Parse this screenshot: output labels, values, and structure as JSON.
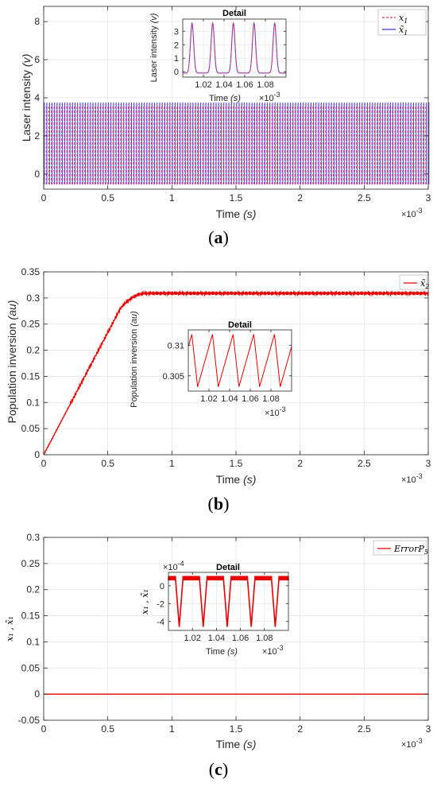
{
  "chart_data": [
    {
      "type": "line",
      "panel": "(a)",
      "caption_letter": "a",
      "xlabel": "Time",
      "xunit": "(s)",
      "ylabel": "Laser intensity",
      "yunit": "(v)",
      "x_multiplier": "×10",
      "x_multiplier_exp": "-3",
      "xlim": [
        0,
        3
      ],
      "ylim": [
        -0.8,
        8.8
      ],
      "xticks": [
        0,
        0.5,
        1,
        1.5,
        2,
        2.5,
        3
      ],
      "yticks": [
        0,
        2,
        4,
        6,
        8
      ],
      "grid": true,
      "legend_position": "top-right",
      "series": [
        {
          "name": "x",
          "name_sub": "1",
          "color": "#e8336b",
          "style": "dashed",
          "min": -0.55,
          "max": 3.65
        },
        {
          "name": "x̃",
          "name_sub": "1",
          "color": "#3a3ad6",
          "style": "solid",
          "min": -0.55,
          "max": 3.75
        }
      ],
      "inset": {
        "title": "Detail",
        "xlabel": "Time",
        "xunit": "(s)",
        "ylabel": "Laser intensity",
        "yunit": "(v)",
        "x_multiplier": "×10",
        "x_multiplier_exp": "-3",
        "xlim": [
          1.0,
          1.1
        ],
        "ylim": [
          -0.4,
          3.9
        ],
        "xticks": [
          "1.02",
          "1.04",
          "1.06",
          "1.08"
        ],
        "xtick_values": [
          1.02,
          1.04,
          1.06,
          1.08
        ],
        "yticks": [
          0,
          1,
          2,
          3
        ],
        "peaks_x": [
          1.009,
          1.029,
          1.049,
          1.069,
          1.089
        ],
        "peak_y": 3.6,
        "base_y": -0.1
      }
    },
    {
      "type": "line",
      "panel": "(b)",
      "caption_letter": "b",
      "xlabel": "Time",
      "xunit": "(s)",
      "ylabel": "Population inversion",
      "yunit": "(au)",
      "x_multiplier": "×10",
      "x_multiplier_exp": "-3",
      "xlim": [
        0,
        3
      ],
      "ylim": [
        0,
        0.35
      ],
      "xticks": [
        0,
        0.5,
        1,
        1.5,
        2,
        2.5,
        3
      ],
      "yticks": [
        "0",
        "0.05",
        "0.1",
        "0.15",
        "0.2",
        "0.25",
        "0.3",
        "0.35"
      ],
      "ytick_values": [
        0,
        0.05,
        0.1,
        0.15,
        0.2,
        0.25,
        0.3,
        0.35
      ],
      "grid": true,
      "legend_position": "top-right",
      "series": [
        {
          "name": "x̃",
          "name_sub": "2",
          "color": "#e60000",
          "style": "solid",
          "plateau": 0.309
        }
      ],
      "inset": {
        "title": "Detail",
        "xlabel": "Time",
        "xunit": "(s)",
        "ylabel": "Population inversion",
        "yunit": "(au)",
        "x_multiplier": "×10",
        "x_multiplier_exp": "-3",
        "xlim": [
          1.0,
          1.1
        ],
        "ylim": [
          0.3025,
          0.3125
        ],
        "xticks": [
          "1.02",
          "1.04",
          "1.06",
          "1.08"
        ],
        "xtick_values": [
          1.02,
          1.04,
          1.06,
          1.08
        ],
        "yticks": [
          "0.305",
          "0.31"
        ],
        "ytick_values": [
          0.305,
          0.31
        ],
        "min_y": 0.3032,
        "max_y": 0.3118
      }
    },
    {
      "type": "line",
      "panel": "(c)",
      "caption_letter": "c",
      "xlabel": "Time",
      "xunit": "(s)",
      "ylabel": "x₁ , x̃₁",
      "x_multiplier": "×10",
      "x_multiplier_exp": "-3",
      "xlim": [
        0,
        3
      ],
      "ylim": [
        -0.05,
        0.3
      ],
      "xticks": [
        0,
        0.5,
        1,
        1.5,
        2,
        2.5,
        3
      ],
      "yticks": [
        "-0.05",
        "0",
        "0.05",
        "0.1",
        "0.15",
        "0.2",
        "0.25",
        "0.3"
      ],
      "ytick_values": [
        -0.05,
        0,
        0.05,
        0.1,
        0.15,
        0.2,
        0.25,
        0.3
      ],
      "grid": true,
      "legend_position": "top-right",
      "series": [
        {
          "name": "ErrorP",
          "name_sub": "5",
          "color": "#e60000",
          "style": "solid",
          "value": 0
        }
      ],
      "inset": {
        "title": "Detail",
        "xlabel": "Time",
        "xunit": "(s)",
        "ylabel": "x₁ , x̃₁",
        "y_multiplier": "×10",
        "y_multiplier_exp": "-4",
        "x_multiplier": "×10",
        "x_multiplier_exp": "-3",
        "xlim": [
          1.0,
          1.1
        ],
        "ylim": [
          -5,
          1.5
        ],
        "xticks": [
          "1.02",
          "1.04",
          "1.06",
          "1.08"
        ],
        "xtick_values": [
          1.02,
          1.04,
          1.06,
          1.08
        ],
        "yticks": [
          "-4",
          "-2",
          "0"
        ],
        "ytick_values": [
          -4,
          -2,
          0
        ],
        "dips_x": [
          1.009,
          1.029,
          1.049,
          1.069,
          1.089
        ],
        "dip_y": -4.6,
        "band_low": 0.6,
        "band_high": 1.1
      }
    }
  ],
  "colors": {
    "axis": "#262626",
    "grid": "#e6e6e6",
    "red": "#e60000",
    "pink": "#e8336b",
    "blue": "#3a3ad6"
  }
}
